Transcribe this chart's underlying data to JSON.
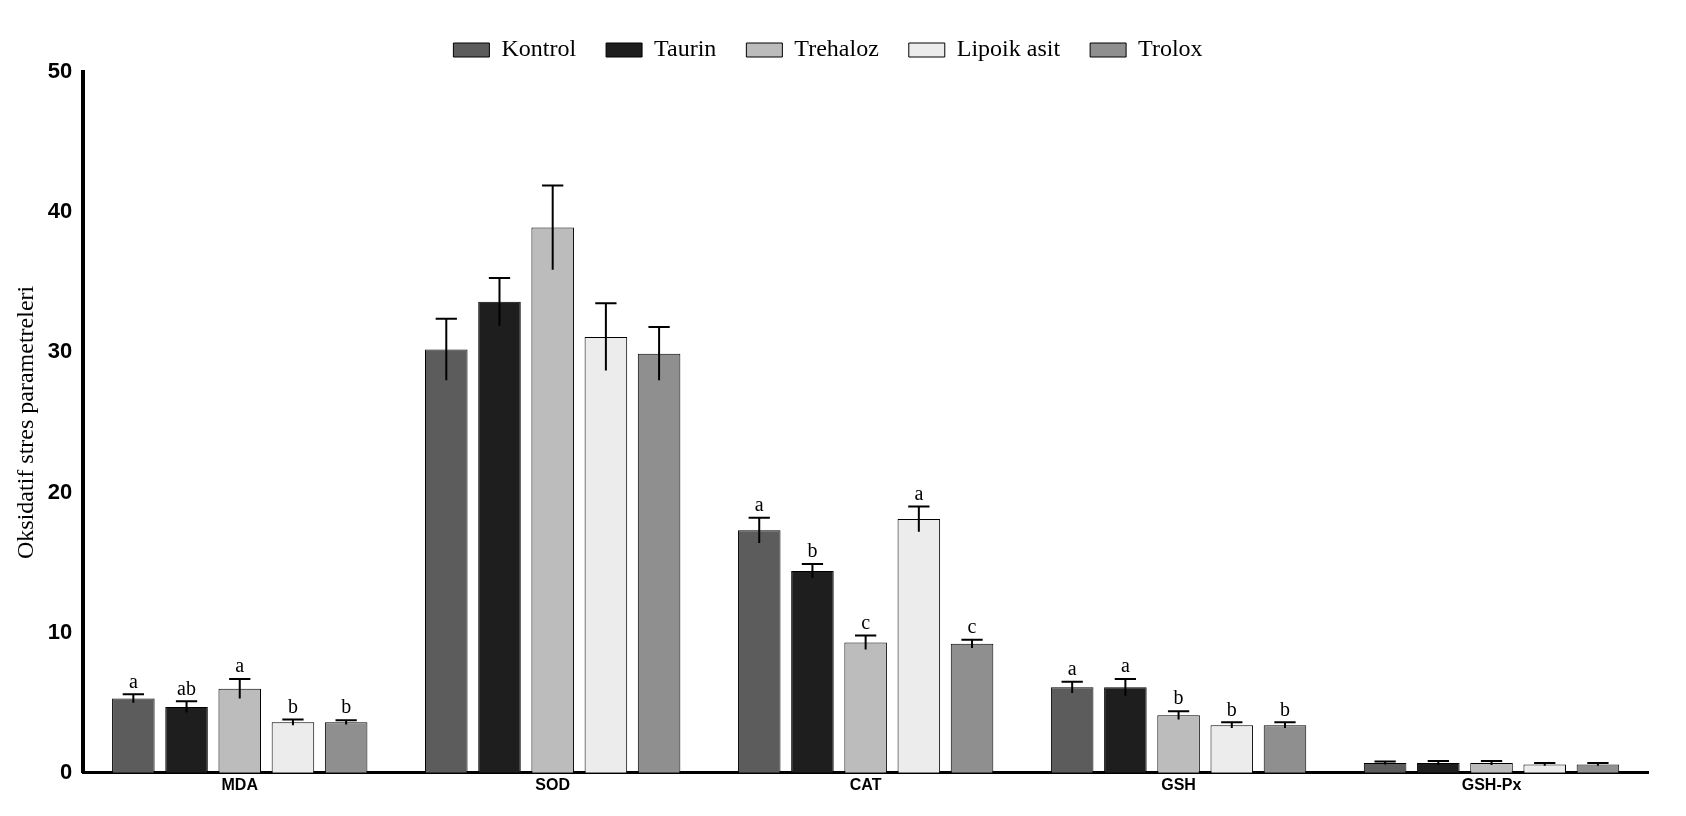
{
  "chart_data": {
    "type": "bar",
    "ylabel": "Oksidatif stres parametreleri",
    "categories": [
      "MDA",
      "SOD",
      "CAT",
      "GSH",
      "GSH-Px"
    ],
    "ylim": [
      0,
      50
    ],
    "yticks": [
      0,
      10,
      20,
      30,
      40,
      50
    ],
    "grid": false,
    "legend": "top",
    "series": [
      {
        "name": "Kontrol",
        "color": "#5c5c5c",
        "values": [
          5.3,
          30.2,
          17.3,
          6.1,
          0.7
        ],
        "errors": [
          0.3,
          2.2,
          0.9,
          0.4,
          0.1
        ],
        "value_labels": [
          "a",
          null,
          "a",
          "a",
          null
        ]
      },
      {
        "name": "Taurin",
        "color": "#1e1e1e",
        "values": [
          4.7,
          33.6,
          14.4,
          6.1,
          0.7
        ],
        "errors": [
          0.4,
          1.7,
          0.5,
          0.6,
          0.15
        ],
        "value_labels": [
          "ab",
          null,
          "b",
          "a",
          null
        ]
      },
      {
        "name": "Trehaloz",
        "color": "#bcbcbc",
        "values": [
          6.0,
          38.9,
          9.3,
          4.1,
          0.7
        ],
        "errors": [
          0.7,
          3.0,
          0.5,
          0.3,
          0.15
        ],
        "value_labels": [
          "a",
          null,
          "c",
          "b",
          null
        ]
      },
      {
        "name": "Lipoik asit",
        "color": "#ececec",
        "values": [
          3.6,
          31.1,
          18.1,
          3.4,
          0.6
        ],
        "errors": [
          0.2,
          2.4,
          0.9,
          0.2,
          0.1
        ],
        "value_labels": [
          "b",
          null,
          "a",
          "b",
          null
        ]
      },
      {
        "name": "Trolox",
        "color": "#8f8f8f",
        "values": [
          3.6,
          29.9,
          9.2,
          3.4,
          0.6
        ],
        "errors": [
          0.15,
          1.9,
          0.3,
          0.2,
          0.1
        ],
        "value_labels": [
          "b",
          null,
          "c",
          "b",
          null
        ]
      }
    ]
  }
}
